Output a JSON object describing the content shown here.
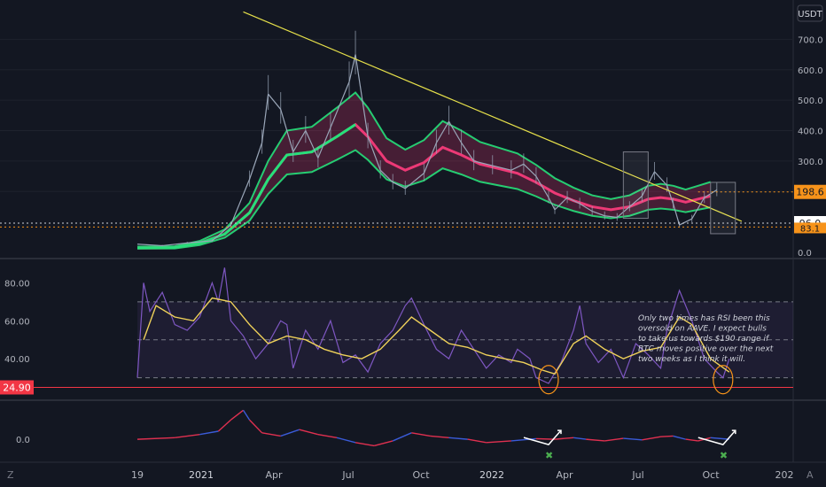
{
  "toolbar": {
    "currency": "USDT",
    "left_label": "Z",
    "right_label": "A"
  },
  "colors": {
    "bg": "#131722",
    "grid": "#1e222d",
    "axis_text": "#b2b5be",
    "candle": "#9aa6b8",
    "ema_green": "#26e07a",
    "ema_red": "#ff3c7d",
    "trend": "#e6e04a",
    "rsi": "#7e57c2",
    "rsi_ma": "#f0d25a",
    "level_red": "#f23645",
    "price_box": "#f7931a",
    "annot_circle": "#f7931a",
    "osc_red": "#e03050",
    "osc_blue": "#3a5bd8",
    "check_green": "#4caf50"
  },
  "chart_data": [
    {
      "type": "line",
      "title": "",
      "x_ticks": [
        "19",
        "2021",
        "Apr",
        "Jul",
        "Oct",
        "2022",
        "Apr",
        "Jul",
        "Oct",
        "202"
      ],
      "y_ticks": [
        "0.0",
        "200.0",
        "300.0",
        "400.0",
        "500.0",
        "600.0",
        "700.0"
      ],
      "price_labels": {
        "last": "198.6",
        "level": "96.0",
        "low": "83.1"
      },
      "series": [
        {
          "values": [
            [
              0,
              27
            ],
            [
              4,
              22
            ],
            [
              8,
              31
            ],
            [
              12,
              38
            ],
            [
              15,
              90
            ],
            [
              18,
              240
            ],
            [
              20,
              360
            ],
            [
              21,
              520
            ],
            [
              23,
              470
            ],
            [
              25,
              330
            ],
            [
              27,
              400
            ],
            [
              29,
              310
            ],
            [
              31,
              410
            ],
            [
              34,
              560
            ],
            [
              35,
              650
            ],
            [
              37,
              380
            ],
            [
              39,
              270
            ],
            [
              41,
              230
            ],
            [
              43,
              210
            ],
            [
              46,
              260
            ],
            [
              48,
              360
            ],
            [
              50,
              430
            ],
            [
              52,
              360
            ],
            [
              54,
              300
            ],
            [
              57,
              285
            ],
            [
              60,
              270
            ],
            [
              62,
              290
            ],
            [
              64,
              250
            ],
            [
              66,
              180
            ],
            [
              67,
              140
            ],
            [
              69,
              180
            ],
            [
              71,
              160
            ],
            [
              73,
              135
            ],
            [
              75,
              120
            ],
            [
              77,
              115
            ],
            [
              79,
              150
            ],
            [
              81,
              185
            ],
            [
              83,
              265
            ],
            [
              85,
              220
            ],
            [
              86,
              160
            ],
            [
              87,
              90
            ],
            [
              89,
              110
            ],
            [
              91,
              180
            ],
            [
              93,
              205
            ]
          ]
        },
        {
          "values": [
            [
              0,
              15
            ],
            [
              6,
              16
            ],
            [
              10,
              30
            ],
            [
              14,
              60
            ],
            [
              18,
              130
            ],
            [
              21,
              240
            ],
            [
              24,
              320
            ],
            [
              28,
              330
            ],
            [
              32,
              380
            ],
            [
              35,
              420
            ],
            [
              37,
              380
            ],
            [
              40,
              300
            ],
            [
              43,
              270
            ],
            [
              46,
              295
            ],
            [
              49,
              345
            ],
            [
              52,
              320
            ],
            [
              55,
              290
            ],
            [
              58,
              275
            ],
            [
              61,
              260
            ],
            [
              64,
              230
            ],
            [
              67,
              195
            ],
            [
              70,
              170
            ],
            [
              73,
              150
            ],
            [
              76,
              140
            ],
            [
              79,
              150
            ],
            [
              82,
              175
            ],
            [
              84,
              180
            ],
            [
              86,
              175
            ],
            [
              88,
              165
            ],
            [
              90,
              175
            ],
            [
              92,
              185
            ]
          ]
        },
        {
          "name": "trend",
          "values": [
            [
              17,
              790
            ],
            [
              97,
              102
            ]
          ]
        }
      ],
      "levels": [
        96.0,
        83.1,
        198.6
      ],
      "ylim": [
        0,
        800
      ],
      "x_range": [
        0,
        100
      ]
    },
    {
      "type": "line",
      "y_ticks": [
        "40.00",
        "60.00",
        "80.00"
      ],
      "level_label": "24.90",
      "bands": [
        70,
        50,
        30
      ],
      "series": [
        {
          "values": [
            [
              0,
              30
            ],
            [
              1,
              80
            ],
            [
              2,
              65
            ],
            [
              4,
              75
            ],
            [
              6,
              58
            ],
            [
              8,
              55
            ],
            [
              10,
              62
            ],
            [
              12,
              80
            ],
            [
              13,
              70
            ],
            [
              14,
              88
            ],
            [
              15,
              60
            ],
            [
              17,
              52
            ],
            [
              19,
              40
            ],
            [
              21,
              48
            ],
            [
              23,
              60
            ],
            [
              24,
              58
            ],
            [
              25,
              35
            ],
            [
              27,
              55
            ],
            [
              29,
              45
            ],
            [
              31,
              60
            ],
            [
              33,
              38
            ],
            [
              35,
              42
            ],
            [
              37,
              33
            ],
            [
              39,
              48
            ],
            [
              41,
              55
            ],
            [
              43,
              68
            ],
            [
              44,
              72
            ],
            [
              46,
              58
            ],
            [
              48,
              45
            ],
            [
              50,
              40
            ],
            [
              52,
              55
            ],
            [
              54,
              45
            ],
            [
              56,
              35
            ],
            [
              58,
              42
            ],
            [
              60,
              38
            ],
            [
              61,
              45
            ],
            [
              63,
              40
            ],
            [
              64,
              30
            ],
            [
              66,
              27
            ],
            [
              68,
              38
            ],
            [
              70,
              55
            ],
            [
              71,
              68
            ],
            [
              72,
              48
            ],
            [
              74,
              38
            ],
            [
              76,
              45
            ],
            [
              78,
              30
            ],
            [
              80,
              48
            ],
            [
              82,
              42
            ],
            [
              84,
              35
            ],
            [
              85,
              55
            ],
            [
              87,
              76
            ],
            [
              89,
              60
            ],
            [
              91,
              40
            ],
            [
              93,
              33
            ],
            [
              94,
              30
            ],
            [
              95,
              40
            ]
          ]
        },
        {
          "values": [
            [
              1,
              50
            ],
            [
              3,
              68
            ],
            [
              6,
              62
            ],
            [
              9,
              60
            ],
            [
              12,
              72
            ],
            [
              15,
              70
            ],
            [
              18,
              58
            ],
            [
              21,
              48
            ],
            [
              24,
              52
            ],
            [
              27,
              50
            ],
            [
              30,
              45
            ],
            [
              33,
              42
            ],
            [
              36,
              40
            ],
            [
              39,
              45
            ],
            [
              42,
              55
            ],
            [
              44,
              62
            ],
            [
              47,
              55
            ],
            [
              50,
              48
            ],
            [
              53,
              46
            ],
            [
              56,
              42
            ],
            [
              59,
              40
            ],
            [
              62,
              38
            ],
            [
              65,
              34
            ],
            [
              67,
              32
            ],
            [
              70,
              48
            ],
            [
              72,
              52
            ],
            [
              75,
              45
            ],
            [
              78,
              40
            ],
            [
              81,
              44
            ],
            [
              84,
              46
            ],
            [
              87,
              62
            ],
            [
              89,
              58
            ],
            [
              92,
              40
            ],
            [
              95,
              33
            ]
          ]
        }
      ],
      "ylim": [
        20,
        90
      ]
    },
    {
      "type": "line",
      "y_ticks": [
        "0.0"
      ],
      "series": [
        {
          "values": [
            [
              0,
              0
            ],
            [
              6,
              0.05
            ],
            [
              10,
              0.15
            ],
            [
              13,
              0.25
            ],
            [
              15,
              0.6
            ],
            [
              17,
              0.9
            ],
            [
              18,
              0.6
            ],
            [
              20,
              0.2
            ],
            [
              23,
              0.1
            ],
            [
              26,
              0.3
            ],
            [
              29,
              0.15
            ],
            [
              32,
              0.05
            ],
            [
              35,
              -0.1
            ],
            [
              38,
              -0.2
            ],
            [
              41,
              -0.05
            ],
            [
              44,
              0.2
            ],
            [
              47,
              0.1
            ],
            [
              50,
              0.05
            ],
            [
              53,
              0.0
            ],
            [
              56,
              -0.1
            ],
            [
              60,
              -0.05
            ],
            [
              64,
              0.02
            ],
            [
              67,
              0.0
            ],
            [
              70,
              0.05
            ],
            [
              72,
              0.0
            ],
            [
              75,
              -0.05
            ],
            [
              78,
              0.03
            ],
            [
              81,
              -0.02
            ],
            [
              84,
              0.08
            ],
            [
              86,
              0.1
            ],
            [
              88,
              0.0
            ],
            [
              90,
              -0.05
            ],
            [
              92,
              0.05
            ],
            [
              95,
              0.0
            ]
          ]
        }
      ],
      "ylim": [
        -0.6,
        1.1
      ]
    }
  ],
  "annotation": {
    "text": "Only two times has RSI been this oversold on AAVE. I expect bulls to take us towards $190 range if BTC moves positive over the next two weeks as I think it will."
  }
}
